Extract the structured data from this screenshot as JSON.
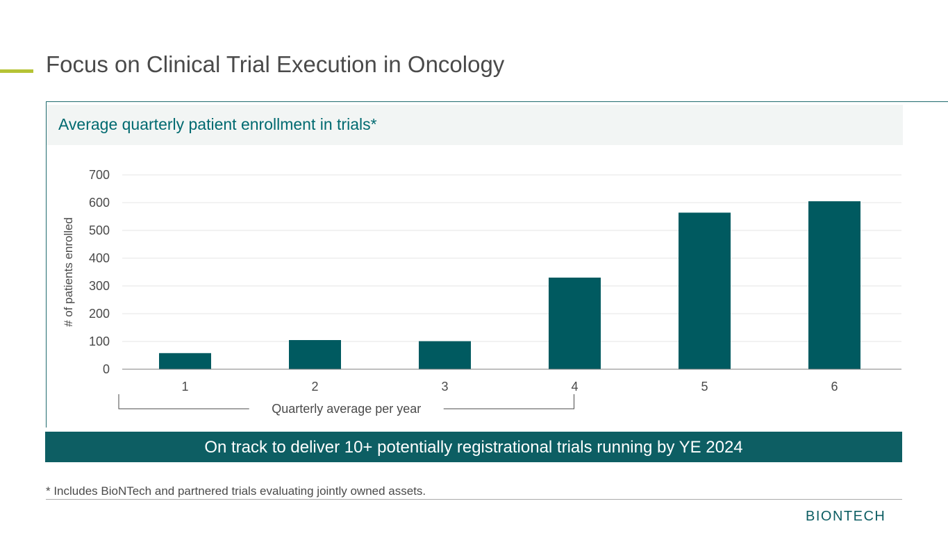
{
  "slide": {
    "title": "Focus on Clinical Trial Execution in Oncology",
    "panel_title": "Average quarterly patient enrollment in trials*",
    "banner": "On track to deliver 10+ potentially registrational trials running by YE 2024",
    "footnote": "* Includes BioNTech and partnered trials evaluating jointly owned assets.",
    "logo_text": "BIONTECH"
  },
  "colors": {
    "accent": "#b5c335",
    "bar": "#005a60",
    "title_teal": "#006a70",
    "banner": "#0d5e63"
  },
  "chart_data": {
    "type": "bar",
    "categories": [
      "1",
      "2",
      "3",
      "4",
      "5",
      "6"
    ],
    "values": [
      58,
      105,
      101,
      330,
      564,
      605
    ],
    "ylabel": "# of patients enrolled",
    "ylim": [
      0,
      700
    ],
    "yticks": [
      0,
      100,
      200,
      300,
      400,
      500,
      600,
      700
    ],
    "grid": true,
    "bracket_label": "Quarterly average per year",
    "bracket_categories": [
      "1",
      "4"
    ]
  }
}
